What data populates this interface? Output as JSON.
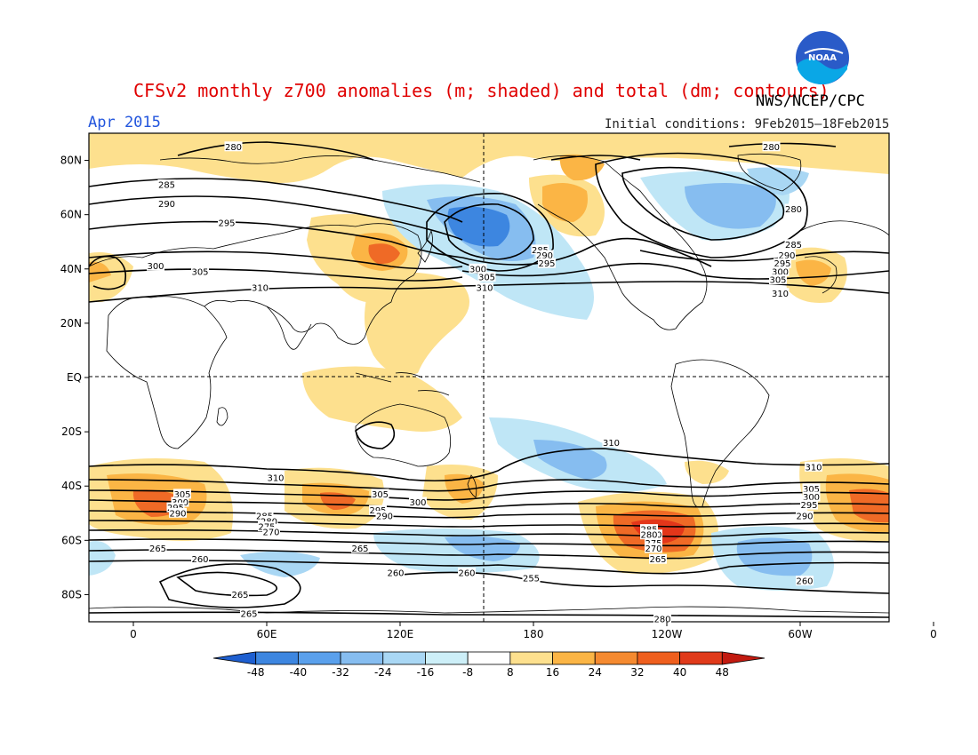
{
  "title": "CFSv2 monthly z700 anomalies (m; shaded) and total (dm; contours)",
  "agency": "NWS/NCEP/CPC",
  "logo_text": "NOAA",
  "valid_month": "Apr 2015",
  "initial_conditions": "Initial conditions: 9Feb2015–18Feb2015",
  "colors": {
    "title": "#e00000",
    "month": "#2255dd",
    "neg_strong": "#2f7bd8",
    "neg_mid": "#86bdf0",
    "neg_weak": "#bfe6f6",
    "pos_weak": "#fde08e",
    "pos_mid": "#fbb545",
    "pos_strong": "#ef6a26",
    "pos_max": "#e3361a"
  },
  "lat_ticks": [
    "80N",
    "60N",
    "40N",
    "20N",
    "EQ",
    "20S",
    "40S",
    "60S",
    "80S"
  ],
  "lon_ticks": [
    "0",
    "60E",
    "120E",
    "180",
    "120W",
    "60W",
    "0"
  ],
  "colorbar": {
    "labels": [
      "-48",
      "-40",
      "-32",
      "-24",
      "-16",
      "-8",
      "8",
      "16",
      "24",
      "32",
      "40",
      "48"
    ],
    "colors": [
      "#1e5fd0",
      "#3d86e0",
      "#5aa0ec",
      "#86bdf0",
      "#a9d7f4",
      "#cdeff8",
      "#ffffff",
      "#fde08e",
      "#fbb545",
      "#f58a30",
      "#ef5f1e",
      "#e03a1a",
      "#c21a10"
    ]
  },
  "contour_labels": [
    {
      "text": "280",
      "lon": 45,
      "lat": 85
    },
    {
      "text": "285",
      "lon": 15,
      "lat": 71
    },
    {
      "text": "290",
      "lon": 15,
      "lat": 64
    },
    {
      "text": "295",
      "lon": 42,
      "lat": 57
    },
    {
      "text": "300",
      "lon": 10,
      "lat": 41
    },
    {
      "text": "305",
      "lon": 30,
      "lat": 39
    },
    {
      "text": "310",
      "lon": 57,
      "lat": 33
    },
    {
      "text": "300",
      "lon": 155,
      "lat": 40
    },
    {
      "text": "305",
      "lon": 159,
      "lat": 37
    },
    {
      "text": "310",
      "lon": 158,
      "lat": 33
    },
    {
      "text": "285",
      "lon": 183,
      "lat": 47
    },
    {
      "text": "290",
      "lon": 185,
      "lat": 45
    },
    {
      "text": "295",
      "lon": 186,
      "lat": 42
    },
    {
      "text": "280",
      "lon": 287,
      "lat": 85
    },
    {
      "text": "280",
      "lon": 297,
      "lat": 62
    },
    {
      "text": "285",
      "lon": 297,
      "lat": 49
    },
    {
      "text": "290",
      "lon": 294,
      "lat": 45
    },
    {
      "text": "295",
      "lon": 292,
      "lat": 42
    },
    {
      "text": "300",
      "lon": 291,
      "lat": 39
    },
    {
      "text": "305",
      "lon": 290,
      "lat": 36
    },
    {
      "text": "310",
      "lon": 291,
      "lat": 31
    },
    {
      "text": "310",
      "lon": 215,
      "lat": -24
    },
    {
      "text": "310",
      "lon": 306,
      "lat": -33
    },
    {
      "text": "310",
      "lon": 64,
      "lat": -37
    },
    {
      "text": "305",
      "lon": 22,
      "lat": -43
    },
    {
      "text": "300",
      "lon": 21,
      "lat": -46
    },
    {
      "text": "295",
      "lon": 19,
      "lat": -48
    },
    {
      "text": "290",
      "lon": 20,
      "lat": -50
    },
    {
      "text": "305",
      "lon": 111,
      "lat": -43
    },
    {
      "text": "300",
      "lon": 128,
      "lat": -46
    },
    {
      "text": "295",
      "lon": 110,
      "lat": -49
    },
    {
      "text": "290",
      "lon": 113,
      "lat": -51
    },
    {
      "text": "285",
      "lon": 59,
      "lat": -51
    },
    {
      "text": "280",
      "lon": 61,
      "lat": -53
    },
    {
      "text": "275",
      "lon": 60,
      "lat": -55
    },
    {
      "text": "270",
      "lon": 62,
      "lat": -57
    },
    {
      "text": "265",
      "lon": 11,
      "lat": -63
    },
    {
      "text": "265",
      "lon": 102,
      "lat": -63
    },
    {
      "text": "260",
      "lon": 30,
      "lat": -67
    },
    {
      "text": "260",
      "lon": 150,
      "lat": -72
    },
    {
      "text": "260",
      "lon": 118,
      "lat": -72
    },
    {
      "text": "260",
      "lon": 234,
      "lat": -58
    },
    {
      "text": "255",
      "lon": 179,
      "lat": -74
    },
    {
      "text": "265",
      "lon": 48,
      "lat": -80
    },
    {
      "text": "265",
      "lon": 52,
      "lat": -87
    },
    {
      "text": "285",
      "lon": 232,
      "lat": -56
    },
    {
      "text": "280",
      "lon": 232,
      "lat": -58
    },
    {
      "text": "275",
      "lon": 234,
      "lat": -61
    },
    {
      "text": "270",
      "lon": 234,
      "lat": -63
    },
    {
      "text": "265",
      "lon": 236,
      "lat": -67
    },
    {
      "text": "260",
      "lon": 302,
      "lat": -75
    },
    {
      "text": "305",
      "lon": 305,
      "lat": -41
    },
    {
      "text": "300",
      "lon": 305,
      "lat": -44
    },
    {
      "text": "295",
      "lon": 304,
      "lat": -47
    },
    {
      "text": "290",
      "lon": 302,
      "lat": -51
    },
    {
      "text": "280",
      "lon": 238,
      "lat": -89
    }
  ]
}
